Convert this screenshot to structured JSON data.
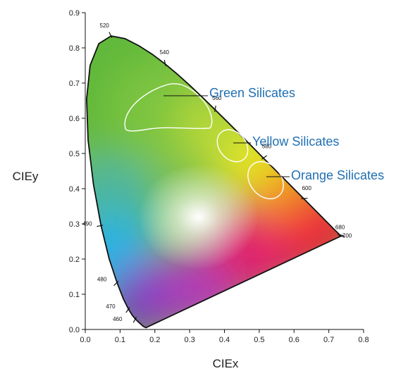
{
  "chart_data": {
    "type": "scatter",
    "title": "",
    "xlabel": "CIEx",
    "ylabel": "CIEy",
    "xlim": [
      0,
      0.8
    ],
    "ylim": [
      0,
      0.9
    ],
    "xticks": [
      "0.0",
      "0.1",
      "0.2",
      "0.3",
      "0.4",
      "0.5",
      "0.6",
      "0.7",
      "0.8"
    ],
    "yticks": [
      "0.0",
      "0.1",
      "0.2",
      "0.3",
      "0.4",
      "0.5",
      "0.6",
      "0.7",
      "0.8",
      "0.9"
    ],
    "wavelength_marks": [
      {
        "label": "460",
        "x": 0.144,
        "y": 0.03
      },
      {
        "label": "470",
        "x": 0.124,
        "y": 0.058
      },
      {
        "label": "480",
        "x": 0.091,
        "y": 0.133
      },
      {
        "label": "490",
        "x": 0.045,
        "y": 0.295
      },
      {
        "label": "520",
        "x": 0.074,
        "y": 0.834
      },
      {
        "label": "540",
        "x": 0.23,
        "y": 0.754
      },
      {
        "label": "560",
        "x": 0.373,
        "y": 0.624
      },
      {
        "label": "580",
        "x": 0.512,
        "y": 0.487
      },
      {
        "label": "600",
        "x": 0.627,
        "y": 0.372
      },
      {
        "label": "680",
        "x": 0.731,
        "y": 0.269
      },
      {
        "label": "700",
        "x": 0.735,
        "y": 0.265
      }
    ],
    "regions": [
      {
        "name": "Green Silicates",
        "cx": 0.23,
        "cy": 0.63
      },
      {
        "name": "Yellow Silicates",
        "cx": 0.415,
        "cy": 0.525
      },
      {
        "name": "Orange Silicates",
        "cx": 0.52,
        "cy": 0.435
      }
    ],
    "region_label_color": "#1f6fb2",
    "region_outline_color": "#ffffff",
    "grid": false
  }
}
